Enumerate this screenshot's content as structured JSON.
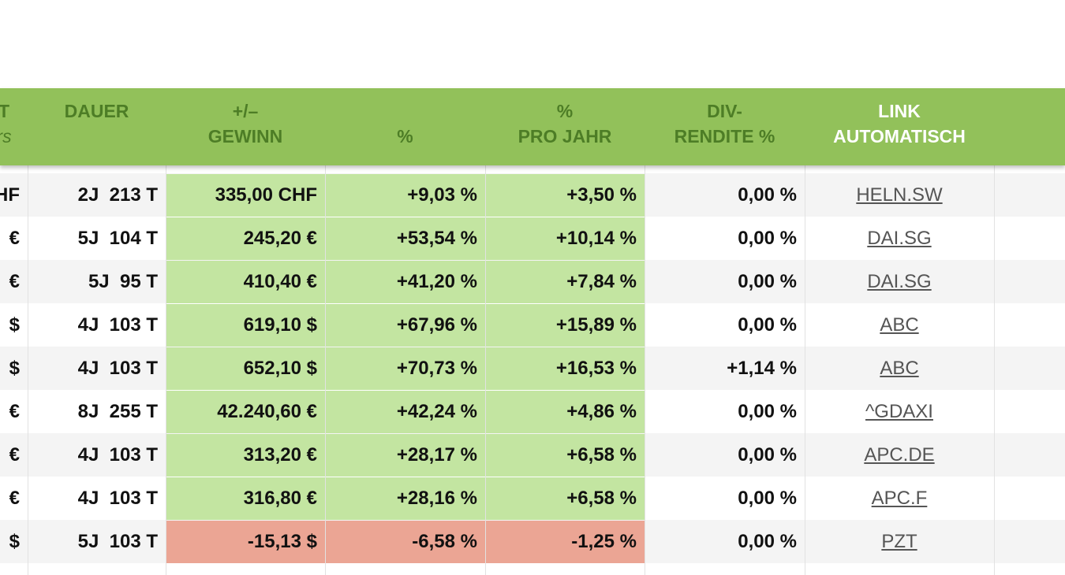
{
  "header": {
    "columns": [
      {
        "lines": [
          "T",
          "rs"
        ]
      },
      {
        "lines": [
          "DAUER"
        ]
      },
      {
        "lines": [
          "+/–",
          "GEWINN"
        ]
      },
      {
        "lines": [
          "%"
        ]
      },
      {
        "lines": [
          "%",
          "PRO JAHR"
        ]
      },
      {
        "lines": [
          "DIV-",
          "RENDITE %"
        ]
      },
      {
        "lines": [
          "LINK",
          "AUTOMATISCH"
        ]
      }
    ],
    "color": "#92c15a",
    "text_color": "#4d7d26",
    "link_header_color": "#ffffff"
  },
  "table": {
    "positive_color": "#c3e5a1",
    "negative_color": "#eba594",
    "rows": [
      {
        "cells": [
          "HF",
          "2J  213 T",
          "335,00 CHF",
          "+9,03 %",
          "+3,50 %",
          "0,00 %",
          "HELN.SW"
        ],
        "highlight": "positive"
      },
      {
        "cells": [
          "€",
          "5J  104 T",
          "245,20 €",
          "+53,54 %",
          "+10,14 %",
          "0,00 %",
          "DAI.SG"
        ],
        "highlight": "positive"
      },
      {
        "cells": [
          "€",
          "5J  95 T",
          "410,40 €",
          "+41,20 %",
          "+7,84 %",
          "0,00 %",
          "DAI.SG"
        ],
        "highlight": "positive"
      },
      {
        "cells": [
          "$",
          "4J  103 T",
          "619,10 $",
          "+67,96 %",
          "+15,89 %",
          "0,00 %",
          "ABC"
        ],
        "highlight": "positive"
      },
      {
        "cells": [
          "$",
          "4J  103 T",
          "652,10 $",
          "+70,73 %",
          "+16,53 %",
          "+1,14 %",
          "ABC"
        ],
        "highlight": "positive"
      },
      {
        "cells": [
          "€",
          "8J  255 T",
          "42.240,60 €",
          "+42,24 %",
          "+4,86 %",
          "0,00 %",
          "^GDAXI"
        ],
        "highlight": "positive"
      },
      {
        "cells": [
          "€",
          "4J  103 T",
          "313,20 €",
          "+28,17 %",
          "+6,58 %",
          "0,00 %",
          "APC.DE"
        ],
        "highlight": "positive"
      },
      {
        "cells": [
          "€",
          "4J  103 T",
          "316,80 €",
          "+28,16 %",
          "+6,58 %",
          "0,00 %",
          "APC.F"
        ],
        "highlight": "positive"
      },
      {
        "cells": [
          "$",
          "5J  103 T",
          "-15,13 $",
          "-6,58 %",
          "-1,25 %",
          "0,00 %",
          "PZT"
        ],
        "highlight": "negative"
      }
    ]
  }
}
